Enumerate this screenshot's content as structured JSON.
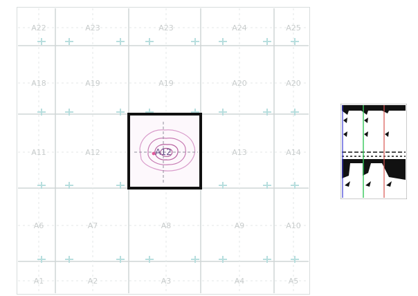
{
  "grid": {
    "rows": [
      [
        "A22",
        "A23",
        "A23",
        "A24",
        "A25"
      ],
      [
        "A18",
        "A19",
        "A19",
        "A20",
        "A20"
      ],
      [
        "A11",
        "A12",
        "A12",
        "A13",
        "A14"
      ],
      [
        "A6",
        "A7",
        "A8",
        "A9",
        "A10"
      ],
      [
        "A1",
        "A2",
        "A3",
        "A4",
        "A5"
      ]
    ],
    "selected": {
      "row": 2,
      "col": 2,
      "label": "A12"
    }
  },
  "colors": {
    "grid_line": "#cfd6d6",
    "cyan_mark": "#b7dede",
    "label_text": "#c8cccc",
    "selection": "#111111",
    "contour": "#c77bb3",
    "contour_light": "#e4b6d8",
    "thumb_green": "#34c759",
    "thumb_red": "#d9534f",
    "thumb_blue": "#3b3bd6"
  },
  "thumbnail": {
    "icon": "tile-preview-icon"
  }
}
